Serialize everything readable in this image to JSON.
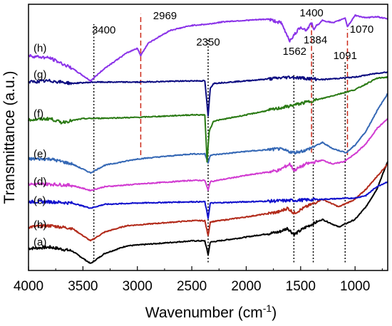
{
  "chart_data": {
    "type": "line",
    "xlabel": "Wavenumber (cm",
    "xlabel_sup": "-1",
    "xlabel_end": ")",
    "ylabel": "Transmittance (a.u.)",
    "xlim": [
      4000,
      700
    ],
    "ylim": [
      0,
      10
    ],
    "x_ticks": [
      4000,
      3500,
      3000,
      2500,
      2000,
      1500,
      1000
    ],
    "y_ticks_shown": false,
    "grid": false,
    "series": [
      {
        "name": "(a)",
        "color": "#000000",
        "label_y": 0.9,
        "points": [
          [
            4000,
            0.65
          ],
          [
            3800,
            0.7
          ],
          [
            3600,
            0.55
          ],
          [
            3430,
            0.05
          ],
          [
            3300,
            0.45
          ],
          [
            3100,
            0.75
          ],
          [
            2800,
            0.85
          ],
          [
            2500,
            0.95
          ],
          [
            2380,
            0.95
          ],
          [
            2350,
            0.4
          ],
          [
            2330,
            0.9
          ],
          [
            2000,
            1.1
          ],
          [
            1700,
            1.3
          ],
          [
            1620,
            1.45
          ],
          [
            1560,
            1.2
          ],
          [
            1450,
            1.5
          ],
          [
            1300,
            1.8
          ],
          [
            1150,
            1.5
          ],
          [
            1000,
            1.8
          ],
          [
            900,
            2.3
          ],
          [
            800,
            3.0
          ],
          [
            700,
            4.1
          ]
        ]
      },
      {
        "name": "(b)",
        "color": "#b22a1a",
        "label_y": 1.6,
        "points": [
          [
            4000,
            1.5
          ],
          [
            3800,
            1.55
          ],
          [
            3600,
            1.45
          ],
          [
            3430,
            0.95
          ],
          [
            3300,
            1.3
          ],
          [
            3100,
            1.55
          ],
          [
            2800,
            1.65
          ],
          [
            2500,
            1.75
          ],
          [
            2380,
            1.75
          ],
          [
            2350,
            1.15
          ],
          [
            2330,
            1.7
          ],
          [
            2000,
            1.9
          ],
          [
            1700,
            2.1
          ],
          [
            1620,
            2.25
          ],
          [
            1560,
            2.05
          ],
          [
            1450,
            2.3
          ],
          [
            1300,
            2.6
          ],
          [
            1150,
            2.3
          ],
          [
            1000,
            2.6
          ],
          [
            900,
            3.0
          ],
          [
            800,
            3.5
          ],
          [
            700,
            4.0
          ]
        ]
      },
      {
        "name": "(c)",
        "color": "#1010cc",
        "label_y": 2.55,
        "points": [
          [
            4000,
            2.5
          ],
          [
            3800,
            2.5
          ],
          [
            3600,
            2.45
          ],
          [
            3430,
            2.25
          ],
          [
            3300,
            2.4
          ],
          [
            3000,
            2.45
          ],
          [
            2500,
            2.5
          ],
          [
            2380,
            2.5
          ],
          [
            2350,
            1.85
          ],
          [
            2330,
            2.45
          ],
          [
            2000,
            2.5
          ],
          [
            1600,
            2.55
          ],
          [
            1300,
            2.6
          ],
          [
            1000,
            2.65
          ],
          [
            900,
            2.75
          ],
          [
            800,
            3.1
          ],
          [
            700,
            3.3
          ]
        ]
      },
      {
        "name": "(d)",
        "color": "#d13bd1",
        "label_y": 3.3,
        "points": [
          [
            4000,
            3.2
          ],
          [
            3800,
            3.2
          ],
          [
            3600,
            3.15
          ],
          [
            3430,
            2.95
          ],
          [
            3300,
            3.1
          ],
          [
            3000,
            3.2
          ],
          [
            2500,
            3.35
          ],
          [
            2380,
            3.35
          ],
          [
            2350,
            2.95
          ],
          [
            2330,
            3.3
          ],
          [
            2000,
            3.55
          ],
          [
            1700,
            3.75
          ],
          [
            1600,
            4.0
          ],
          [
            1560,
            3.75
          ],
          [
            1450,
            4.0
          ],
          [
            1300,
            4.15
          ],
          [
            1200,
            4.0
          ],
          [
            1100,
            4.1
          ],
          [
            1000,
            4.4
          ],
          [
            900,
            4.8
          ],
          [
            800,
            5.4
          ],
          [
            700,
            5.8
          ]
        ]
      },
      {
        "name": "(e)",
        "color": "#3568b5",
        "label_y": 4.4,
        "points": [
          [
            4000,
            4.2
          ],
          [
            3800,
            4.2
          ],
          [
            3600,
            4.0
          ],
          [
            3430,
            3.65
          ],
          [
            3300,
            3.95
          ],
          [
            3000,
            4.2
          ],
          [
            2500,
            4.4
          ],
          [
            2380,
            4.4
          ],
          [
            2350,
            4.05
          ],
          [
            2330,
            4.35
          ],
          [
            2000,
            4.5
          ],
          [
            1700,
            4.6
          ],
          [
            1560,
            4.45
          ],
          [
            1450,
            4.55
          ],
          [
            1300,
            4.85
          ],
          [
            1200,
            4.6
          ],
          [
            1080,
            4.45
          ],
          [
            1000,
            4.75
          ],
          [
            900,
            5.3
          ],
          [
            800,
            6.1
          ],
          [
            700,
            6.8
          ]
        ]
      },
      {
        "name": "(f)",
        "color": "#2a7a14",
        "label_y": 6.0,
        "points": [
          [
            4000,
            5.75
          ],
          [
            3800,
            5.8
          ],
          [
            3700,
            5.65
          ],
          [
            3500,
            5.8
          ],
          [
            3000,
            5.85
          ],
          [
            2500,
            5.95
          ],
          [
            2380,
            5.95
          ],
          [
            2360,
            4.1
          ],
          [
            2340,
            5.3
          ],
          [
            2300,
            5.7
          ],
          [
            2000,
            5.95
          ],
          [
            1600,
            6.3
          ],
          [
            1300,
            6.6
          ],
          [
            1000,
            6.95
          ],
          [
            800,
            7.4
          ],
          [
            700,
            7.45
          ]
        ]
      },
      {
        "name": "(g)",
        "color": "#0a0a80",
        "label_y": 7.55,
        "points": [
          [
            4000,
            7.25
          ],
          [
            3800,
            7.3
          ],
          [
            3600,
            7.2
          ],
          [
            3400,
            7.25
          ],
          [
            3000,
            7.25
          ],
          [
            2500,
            7.3
          ],
          [
            2380,
            7.3
          ],
          [
            2350,
            5.9
          ],
          [
            2330,
            7.0
          ],
          [
            2300,
            7.2
          ],
          [
            2000,
            7.3
          ],
          [
            1600,
            7.45
          ],
          [
            1300,
            7.35
          ],
          [
            1000,
            7.45
          ],
          [
            800,
            7.6
          ],
          [
            700,
            7.65
          ]
        ]
      },
      {
        "name": "(h)",
        "color": "#8a32e8",
        "label_y": 8.6,
        "points": [
          [
            4000,
            8.3
          ],
          [
            3800,
            8.2
          ],
          [
            3600,
            7.8
          ],
          [
            3430,
            7.3
          ],
          [
            3300,
            7.8
          ],
          [
            3100,
            8.4
          ],
          [
            3000,
            8.6
          ],
          [
            2970,
            8.3
          ],
          [
            2900,
            8.8
          ],
          [
            2700,
            9.3
          ],
          [
            2500,
            9.5
          ],
          [
            2350,
            9.55
          ],
          [
            2200,
            9.65
          ],
          [
            1800,
            9.75
          ],
          [
            1680,
            9.6
          ],
          [
            1600,
            8.9
          ],
          [
            1562,
            9.1
          ],
          [
            1500,
            9.45
          ],
          [
            1450,
            9.3
          ],
          [
            1400,
            9.6
          ],
          [
            1384,
            9.35
          ],
          [
            1300,
            9.7
          ],
          [
            1200,
            9.6
          ],
          [
            1091,
            9.8
          ],
          [
            1070,
            9.45
          ],
          [
            1000,
            9.9
          ],
          [
            900,
            9.8
          ],
          [
            800,
            9.85
          ],
          [
            700,
            9.75
          ]
        ]
      }
    ],
    "reference_lines": [
      {
        "x": 3400,
        "style": "dotted",
        "color": "#000000",
        "label": "3400",
        "y_from": 0.1,
        "y_to": 9.55
      },
      {
        "x": 2969,
        "style": "dashed",
        "color": "#cc2a1a",
        "label": "2969",
        "y_from": 4.35,
        "y_to": 9.95
      },
      {
        "x": 2350,
        "style": "dotted",
        "color": "#000000",
        "label": "2350",
        "y_from": 0.1,
        "y_to": 9.0
      },
      {
        "x": 1562,
        "style": "dotted",
        "color": "#000000",
        "label": "1562",
        "y_from": 0.1,
        "y_to": 7.6
      },
      {
        "x": 1400,
        "style": "dashed",
        "color": "#cc2a1a",
        "label": "1400",
        "y_from": 4.45,
        "y_to": 9.75
      },
      {
        "x": 1384,
        "style": "dotted",
        "color": "#000000",
        "label": "1384",
        "y_from": 0.1,
        "y_to": 8.45
      },
      {
        "x": 1091,
        "style": "dotted",
        "color": "#000000",
        "label": "1091",
        "y_from": 0.1,
        "y_to": 8.1
      },
      {
        "x": 1070,
        "style": "dashed",
        "color": "#cc2a1a",
        "label": "1070",
        "y_from": 4.35,
        "y_to": 9.35
      }
    ]
  }
}
